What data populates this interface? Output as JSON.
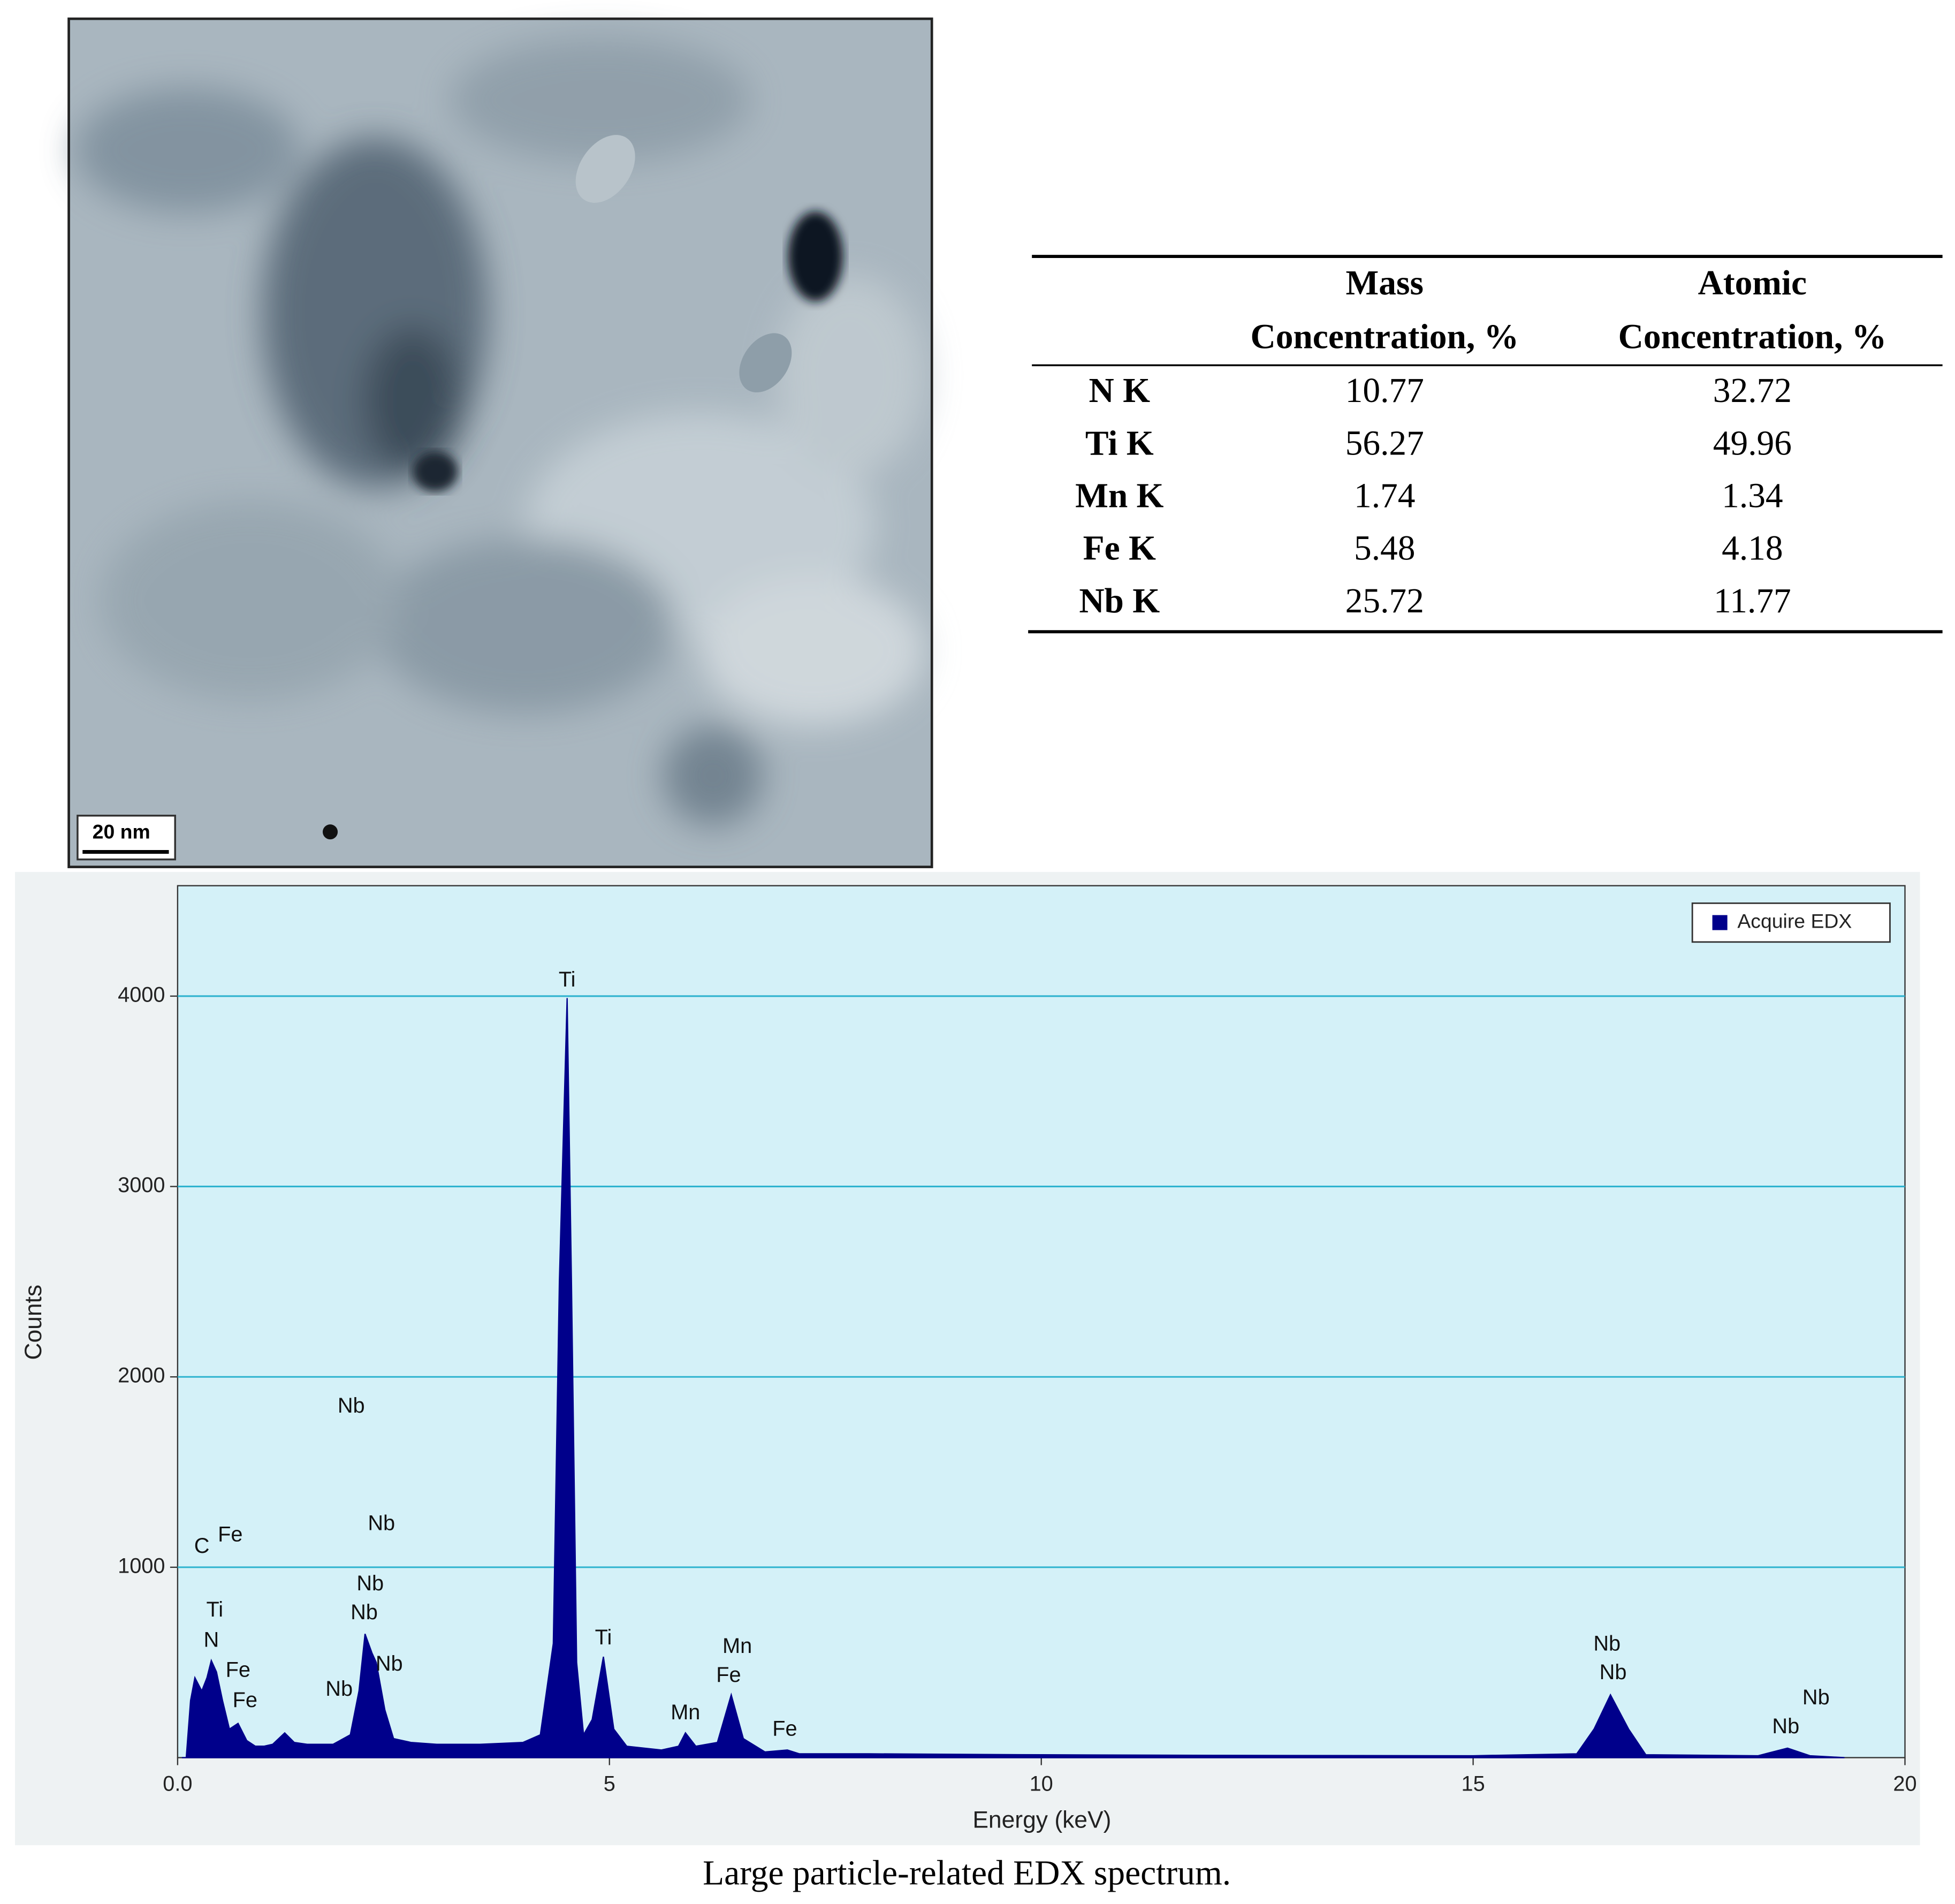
{
  "image": {
    "scale_bar": "20 nm"
  },
  "table": {
    "header": [
      [
        "Mass",
        "Concentration, %"
      ],
      [
        "Atomic",
        "Concentration, %"
      ]
    ],
    "rows": [
      [
        "N K",
        "10.77",
        "32.72"
      ],
      [
        "Ti K",
        "56.27",
        "49.96"
      ],
      [
        "Mn K",
        "1.74",
        "1.34"
      ],
      [
        "Fe K",
        "5.48",
        "4.18"
      ],
      [
        "Nb K",
        "25.72",
        "11.77"
      ]
    ]
  },
  "chart_data": {
    "type": "area",
    "xlabel": "Energy (keV)",
    "ylabel": "Counts",
    "x": [
      0.05,
      0.1,
      0.15,
      0.2,
      0.28,
      0.34,
      0.39,
      0.45,
      0.52,
      0.6,
      0.7,
      0.8,
      0.9,
      1.0,
      1.1,
      1.24,
      1.35,
      1.5,
      1.8,
      2.0,
      2.1,
      2.17,
      2.25,
      2.3,
      2.4,
      2.5,
      2.7,
      3.0,
      3.5,
      4.0,
      4.2,
      4.35,
      4.42,
      4.51,
      4.56,
      4.62,
      4.7,
      4.8,
      4.93,
      5.05,
      5.2,
      5.6,
      5.8,
      5.88,
      6.0,
      6.25,
      6.41,
      6.55,
      6.8,
      7.06,
      7.2,
      8.0,
      10.0,
      12.0,
      15.0,
      16.2,
      16.4,
      16.59,
      16.8,
      17.0,
      18.3,
      18.64,
      18.9,
      19.3
    ],
    "series": [
      {
        "name": "Acquire EDX",
        "color": "#00008b",
        "values": [
          0,
          0,
          300,
          420,
          350,
          420,
          510,
          450,
          300,
          150,
          180,
          90,
          60,
          60,
          70,
          130,
          80,
          70,
          70,
          120,
          350,
          650,
          550,
          500,
          250,
          100,
          80,
          70,
          70,
          80,
          120,
          600,
          2500,
          3990,
          2500,
          500,
          120,
          200,
          530,
          150,
          60,
          40,
          60,
          130,
          60,
          80,
          330,
          100,
          30,
          40,
          20,
          20,
          15,
          12,
          10,
          20,
          150,
          330,
          150,
          15,
          10,
          50,
          10,
          0
        ]
      }
    ],
    "xlim": [
      0,
      20
    ],
    "ylim": [
      0,
      4580
    ],
    "xticks": [
      {
        "value": 0,
        "label": "0.0"
      },
      5,
      10,
      15,
      20
    ],
    "yticks": [
      1000,
      2000,
      3000,
      4000
    ],
    "grid": true,
    "legend": "upper right",
    "annotations": [
      {
        "text": "Ti",
        "x": 4.51,
        "y": 4080
      },
      {
        "text": "Nb",
        "x": 2.01,
        "y": 1842
      },
      {
        "text": "C",
        "x": 0.28,
        "y": 1105
      },
      {
        "text": "Fe",
        "x": 0.61,
        "y": 1165
      },
      {
        "text": "Nb",
        "x": 2.36,
        "y": 1224
      },
      {
        "text": "Nb",
        "x": 2.23,
        "y": 908
      },
      {
        "text": "Nb",
        "x": 2.16,
        "y": 757
      },
      {
        "text": "Nb",
        "x": 2.45,
        "y": 487
      },
      {
        "text": "Ti",
        "x": 0.43,
        "y": 770
      },
      {
        "text": "N",
        "x": 0.39,
        "y": 612
      },
      {
        "text": "Fe",
        "x": 0.7,
        "y": 454
      },
      {
        "text": "Fe",
        "x": 0.78,
        "y": 296
      },
      {
        "text": "Nb",
        "x": 1.87,
        "y": 355
      },
      {
        "text": "Ti",
        "x": 4.93,
        "y": 625
      },
      {
        "text": "Mn",
        "x": 6.48,
        "y": 579
      },
      {
        "text": "Fe",
        "x": 6.38,
        "y": 428
      },
      {
        "text": "Mn",
        "x": 5.88,
        "y": 230
      },
      {
        "text": "Fe",
        "x": 7.03,
        "y": 145
      },
      {
        "text": "Nb",
        "x": 16.55,
        "y": 592
      },
      {
        "text": "Nb",
        "x": 16.62,
        "y": 441
      },
      {
        "text": "Nb",
        "x": 18.97,
        "y": 309
      },
      {
        "text": "Nb",
        "x": 18.62,
        "y": 158
      }
    ]
  },
  "caption": "Large particle-related EDX spectrum."
}
